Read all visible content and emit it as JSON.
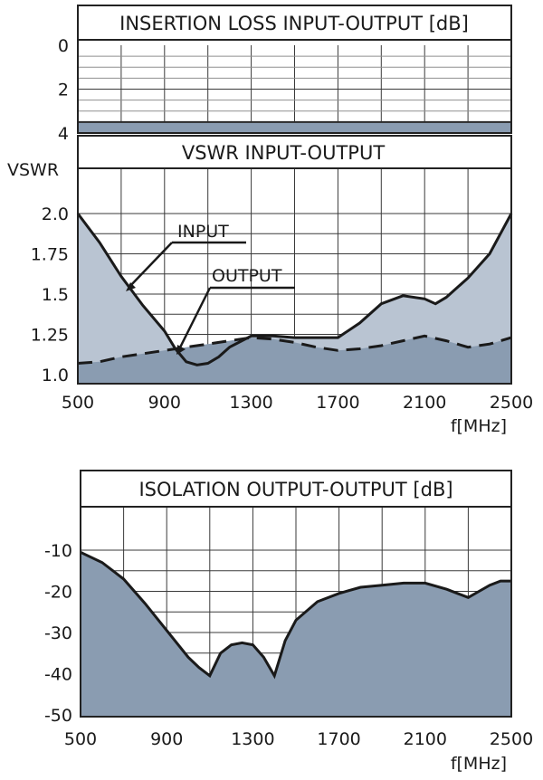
{
  "chart_data": [
    {
      "type": "area",
      "title": "INSERTION LOSS INPUT-OUTPUT [dB]",
      "xlim": [
        500,
        2500
      ],
      "ylim": [
        0,
        4
      ],
      "y_inverted": true,
      "yticks": [
        "0",
        "2",
        "4"
      ],
      "grid": true,
      "series": [
        {
          "x": [
            500,
            2500
          ],
          "values": [
            3.5,
            3.5
          ],
          "fill_to": 4,
          "color": "#8a9cb1"
        }
      ]
    },
    {
      "type": "area",
      "title": "VSWR INPUT-OUTPUT",
      "ylabel": "VSWR",
      "xlabel": "f[MHz]",
      "xlim": [
        500,
        2500
      ],
      "ylim": [
        1.0,
        2.0
      ],
      "xticks": [
        "500",
        "900",
        "1300",
        "1700",
        "2100",
        "2500"
      ],
      "yticks": [
        "2.0",
        "1.75",
        "1.5",
        "1.25",
        "1.0"
      ],
      "grid": true,
      "annotations": [
        "INPUT",
        "OUTPUT"
      ],
      "series": [
        {
          "name": "INPUT",
          "style": "solid",
          "color": "#b9c4d2",
          "x": [
            500,
            600,
            700,
            800,
            900,
            950,
            1000,
            1050,
            1100,
            1150,
            1200,
            1300,
            1400,
            1500,
            1600,
            1700,
            1800,
            1900,
            2000,
            2100,
            2150,
            2200,
            2300,
            2400,
            2500
          ],
          "values": [
            2.0,
            1.82,
            1.61,
            1.43,
            1.27,
            1.16,
            1.08,
            1.06,
            1.07,
            1.11,
            1.17,
            1.24,
            1.24,
            1.23,
            1.23,
            1.23,
            1.32,
            1.44,
            1.49,
            1.47,
            1.44,
            1.48,
            1.6,
            1.75,
            2.0
          ]
        },
        {
          "name": "OUTPUT",
          "style": "dashed",
          "color": "#8a9cb1",
          "x": [
            500,
            600,
            700,
            800,
            900,
            1000,
            1100,
            1200,
            1300,
            1400,
            1500,
            1600,
            1700,
            1800,
            1900,
            2000,
            2100,
            2200,
            2300,
            2400,
            2500
          ],
          "values": [
            1.07,
            1.08,
            1.11,
            1.13,
            1.15,
            1.17,
            1.19,
            1.21,
            1.23,
            1.22,
            1.2,
            1.17,
            1.15,
            1.16,
            1.18,
            1.21,
            1.24,
            1.21,
            1.17,
            1.19,
            1.23
          ]
        }
      ]
    },
    {
      "type": "area",
      "title": "ISOLATION OUTPUT-OUTPUT [dB]",
      "xlabel": "f[MHz]",
      "xlim": [
        500,
        2500
      ],
      "ylim": [
        -50,
        0
      ],
      "xticks": [
        "500",
        "900",
        "1300",
        "1700",
        "2100",
        "2500"
      ],
      "yticks": [
        "-10",
        "-20",
        "-30",
        "-40",
        "-50"
      ],
      "grid": true,
      "series": [
        {
          "color": "#8a9cb1",
          "x": [
            500,
            600,
            700,
            800,
            900,
            1000,
            1050,
            1100,
            1150,
            1200,
            1250,
            1300,
            1350,
            1400,
            1450,
            1500,
            1600,
            1700,
            1800,
            1900,
            2000,
            2100,
            2200,
            2250,
            2300,
            2350,
            2400,
            2450,
            2500
          ],
          "values": [
            -10.5,
            -13,
            -17,
            -23,
            -29.5,
            -36,
            -38.5,
            -40.5,
            -35,
            -33,
            -32.5,
            -33,
            -36,
            -40.5,
            -32,
            -27,
            -22.5,
            -20.5,
            -19,
            -18.5,
            -18,
            -18,
            -19.5,
            -20.5,
            -21.5,
            -20,
            -18.5,
            -17.5,
            -17.5
          ]
        }
      ]
    }
  ]
}
